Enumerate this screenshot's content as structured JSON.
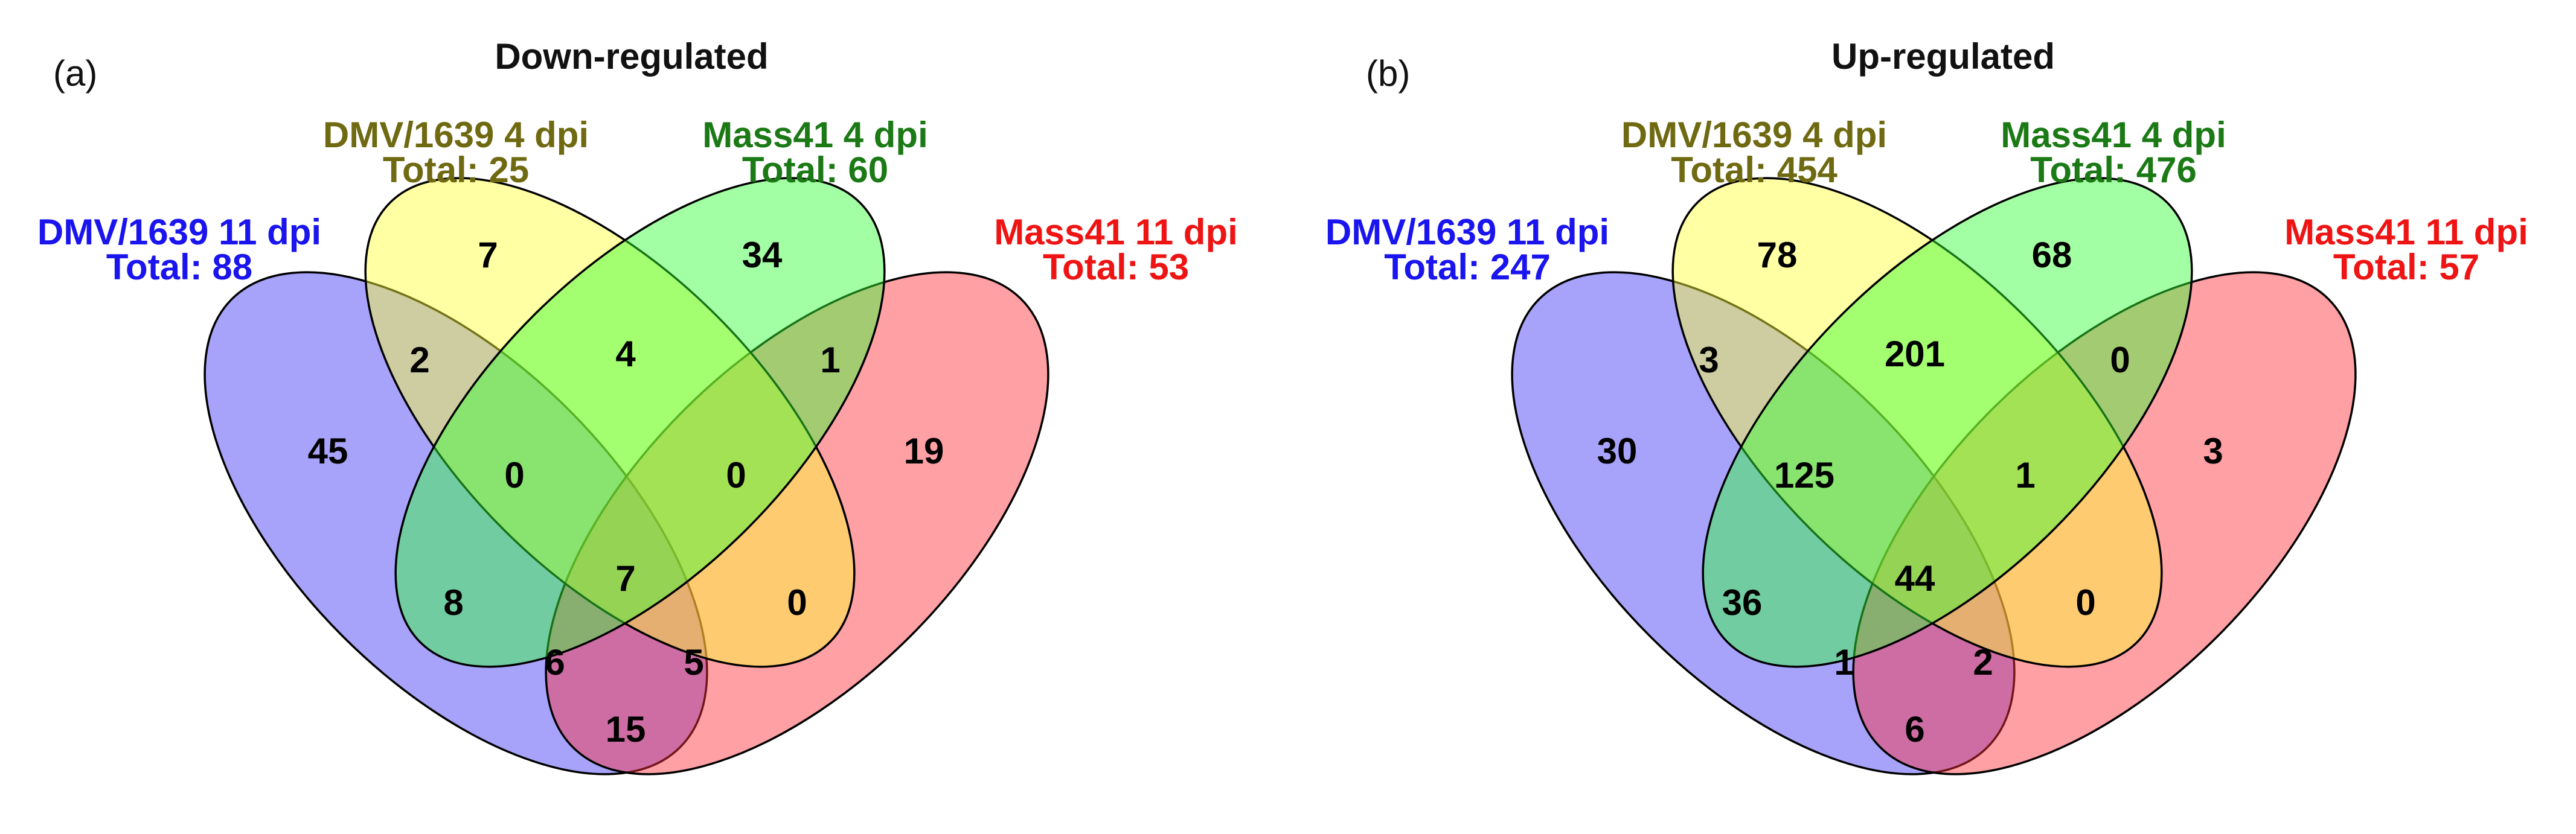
{
  "colors": {
    "dmv11": "#1a14ee",
    "dmv4": "#6f6a12",
    "mass4": "#1b7a15",
    "mass11": "#ee1414",
    "fill_dmv11": "#3b33f7",
    "fill_dmv4": "#ffff33",
    "fill_mass4": "#33ff33",
    "fill_mass11": "#ff2d38"
  },
  "panels": [
    {
      "label": "(a)",
      "title": "Down-regulated",
      "sets": {
        "dmv11": {
          "name": "DMV/1639 11 dpi",
          "total": "Total: 88"
        },
        "dmv4": {
          "name": "DMV/1639 4 dpi",
          "total": "Total: 25"
        },
        "mass4": {
          "name": "Mass41 4 dpi",
          "total": "Total: 60"
        },
        "mass11": {
          "name": "Mass41 11 dpi",
          "total": "Total: 53"
        }
      },
      "counts": {
        "dmv11_only": "45",
        "dmv4_only": "7",
        "mass4_only": "34",
        "mass11_only": "19",
        "dmv11_dmv4": "2",
        "dmv4_mass4": "4",
        "mass4_mass11": "1",
        "dmv11_dmv4_mass4": "0",
        "dmv4_mass4_mass11": "0",
        "dmv11_mass4": "8",
        "dmv4_mass11": "0",
        "all_four": "7",
        "dmv11_mass4_mass11": "6",
        "dmv11_dmv4_mass11": "5",
        "dmv11_mass11": "15"
      }
    },
    {
      "label": "(b)",
      "title": "Up-regulated",
      "sets": {
        "dmv11": {
          "name": "DMV/1639 11 dpi",
          "total": "Total: 247"
        },
        "dmv4": {
          "name": "DMV/1639 4 dpi",
          "total": "Total: 454"
        },
        "mass4": {
          "name": "Mass41 4 dpi",
          "total": "Total: 476"
        },
        "mass11": {
          "name": "Mass41 11 dpi",
          "total": "Total: 57"
        }
      },
      "counts": {
        "dmv11_only": "30",
        "dmv4_only": "78",
        "mass4_only": "68",
        "mass11_only": "3",
        "dmv11_dmv4": "3",
        "dmv4_mass4": "201",
        "mass4_mass11": "0",
        "dmv11_dmv4_mass4": "125",
        "dmv4_mass4_mass11": "1",
        "dmv11_mass4": "36",
        "dmv4_mass11": "0",
        "all_four": "44",
        "dmv11_mass4_mass11": "1",
        "dmv11_dmv4_mass11": "2",
        "dmv11_mass11": "6"
      }
    }
  ]
}
